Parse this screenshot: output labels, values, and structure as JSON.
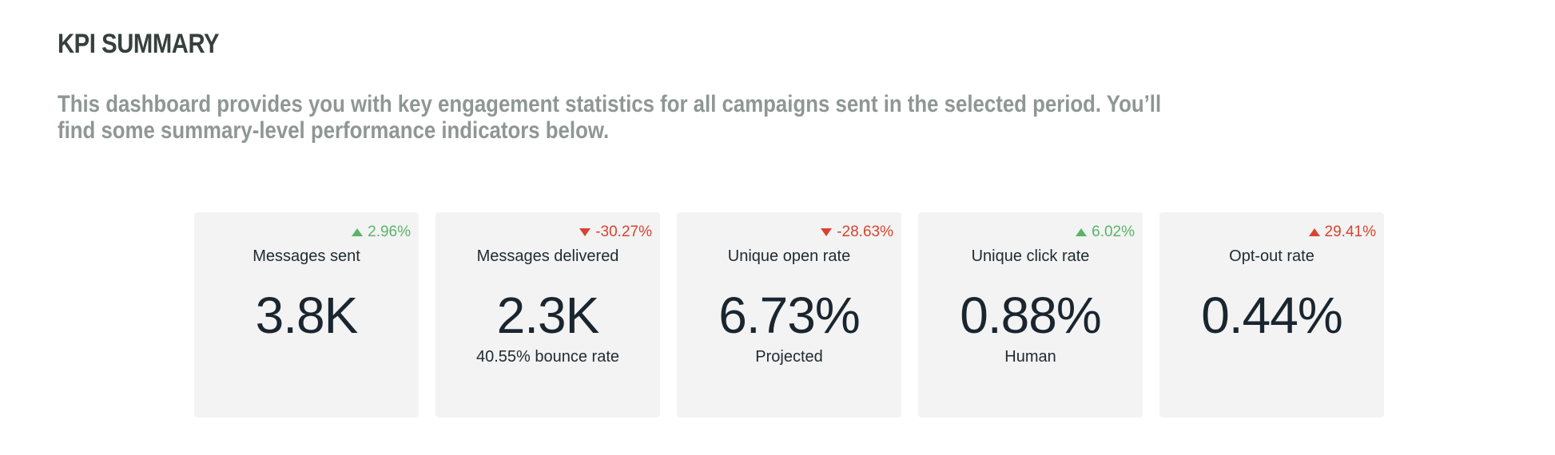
{
  "header": {
    "title": "KPI SUMMARY",
    "intro_line1": "This dashboard provides you with key engagement statistics for all campaigns sent in the selected period. You’ll",
    "intro_line2": "find some summary-level performance indicators below."
  },
  "colors": {
    "up_good": "#5bb36a",
    "negative": "#d9432f",
    "card_bg": "#f2f3f2"
  },
  "kpis": [
    {
      "label": "Messages sent",
      "value": "3.8K",
      "sub": "",
      "delta": "2.96%",
      "trend": "up",
      "tone": "green"
    },
    {
      "label": "Messages delivered",
      "value": "2.3K",
      "sub": "40.55% bounce rate",
      "delta": "-30.27%",
      "trend": "down",
      "tone": "red"
    },
    {
      "label": "Unique open rate",
      "value": "6.73%",
      "sub": "Projected",
      "delta": "-28.63%",
      "trend": "down",
      "tone": "red"
    },
    {
      "label": "Unique click rate",
      "value": "0.88%",
      "sub": "Human",
      "delta": "6.02%",
      "trend": "up",
      "tone": "green"
    },
    {
      "label": "Opt-out rate",
      "value": "0.44%",
      "sub": "",
      "delta": "29.41%",
      "trend": "up",
      "tone": "red"
    }
  ]
}
